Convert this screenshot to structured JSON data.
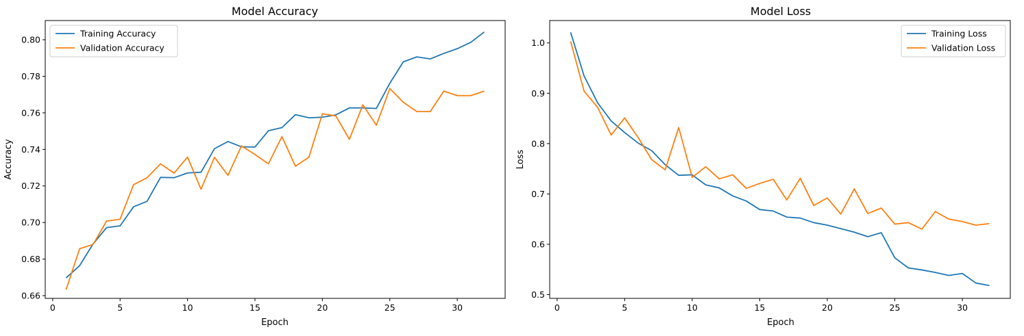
{
  "chart_data": [
    {
      "type": "line",
      "title": "Model Accuracy",
      "xlabel": "Epoch",
      "ylabel": "Accuracy",
      "xlim": [
        -0.55,
        33.55
      ],
      "ylim": [
        0.6585,
        0.8105
      ],
      "xticks": [
        0,
        5,
        10,
        15,
        20,
        25,
        30
      ],
      "yticks": [
        0.66,
        0.68,
        0.7,
        0.72,
        0.74,
        0.76,
        0.78,
        0.8
      ],
      "ytick_labels": [
        "0.66",
        "0.68",
        "0.70",
        "0.72",
        "0.74",
        "0.76",
        "0.78",
        "0.80"
      ],
      "grid": false,
      "legend_position": "upper-left",
      "x": [
        1,
        2,
        3,
        4,
        5,
        6,
        7,
        8,
        9,
        10,
        11,
        12,
        13,
        14,
        15,
        16,
        17,
        18,
        19,
        20,
        21,
        22,
        23,
        24,
        25,
        26,
        27,
        28,
        29,
        30,
        31,
        32
      ],
      "series": [
        {
          "name": "Training Accuracy",
          "color": "#1f77b4",
          "values": [
            0.6697,
            0.6764,
            0.6883,
            0.6972,
            0.6982,
            0.7086,
            0.7116,
            0.7247,
            0.7245,
            0.7271,
            0.7275,
            0.7404,
            0.7443,
            0.7414,
            0.7413,
            0.7502,
            0.7519,
            0.759,
            0.7573,
            0.7576,
            0.7589,
            0.7627,
            0.7627,
            0.7624,
            0.7762,
            0.7879,
            0.7906,
            0.7895,
            0.7925,
            0.7951,
            0.7986,
            0.8042
          ]
        },
        {
          "name": "Validation Accuracy",
          "color": "#ff7f0e",
          "values": [
            0.6633,
            0.6857,
            0.688,
            0.7008,
            0.7018,
            0.7207,
            0.7245,
            0.7321,
            0.727,
            0.7358,
            0.7182,
            0.7357,
            0.7258,
            0.7419,
            0.7372,
            0.7321,
            0.747,
            0.7308,
            0.7357,
            0.7595,
            0.7583,
            0.7455,
            0.7644,
            0.7532,
            0.7733,
            0.7658,
            0.7607,
            0.7607,
            0.7719,
            0.7694,
            0.7694,
            0.7719
          ]
        }
      ]
    },
    {
      "type": "line",
      "title": "Model Loss",
      "xlabel": "Epoch",
      "ylabel": "Loss",
      "xlim": [
        -0.55,
        33.55
      ],
      "ylim": [
        0.4925,
        1.0445
      ],
      "xticks": [
        0,
        5,
        10,
        15,
        20,
        25,
        30
      ],
      "yticks": [
        0.5,
        0.6,
        0.7,
        0.8,
        0.9,
        1.0
      ],
      "ytick_labels": [
        "0.5",
        "0.6",
        "0.7",
        "0.8",
        "0.9",
        "1.0"
      ],
      "grid": false,
      "legend_position": "upper-right",
      "x": [
        1,
        2,
        3,
        4,
        5,
        6,
        7,
        8,
        9,
        10,
        11,
        12,
        13,
        14,
        15,
        16,
        17,
        18,
        19,
        20,
        21,
        22,
        23,
        24,
        25,
        26,
        27,
        28,
        29,
        30,
        31,
        32
      ],
      "series": [
        {
          "name": "Training Loss",
          "color": "#1f77b4",
          "values": [
            1.021,
            0.934,
            0.881,
            0.845,
            0.822,
            0.801,
            0.786,
            0.758,
            0.737,
            0.738,
            0.718,
            0.712,
            0.696,
            0.686,
            0.669,
            0.666,
            0.654,
            0.652,
            0.643,
            0.638,
            0.631,
            0.624,
            0.615,
            0.623,
            0.573,
            0.553,
            0.549,
            0.544,
            0.538,
            0.542,
            0.523,
            0.518
          ]
        },
        {
          "name": "Validation Loss",
          "color": "#ff7f0e",
          "values": [
            1.003,
            0.904,
            0.872,
            0.817,
            0.851,
            0.812,
            0.768,
            0.748,
            0.832,
            0.733,
            0.754,
            0.73,
            0.738,
            0.711,
            0.721,
            0.729,
            0.688,
            0.731,
            0.677,
            0.692,
            0.66,
            0.71,
            0.661,
            0.672,
            0.64,
            0.643,
            0.63,
            0.665,
            0.65,
            0.645,
            0.638,
            0.641
          ]
        }
      ]
    }
  ]
}
